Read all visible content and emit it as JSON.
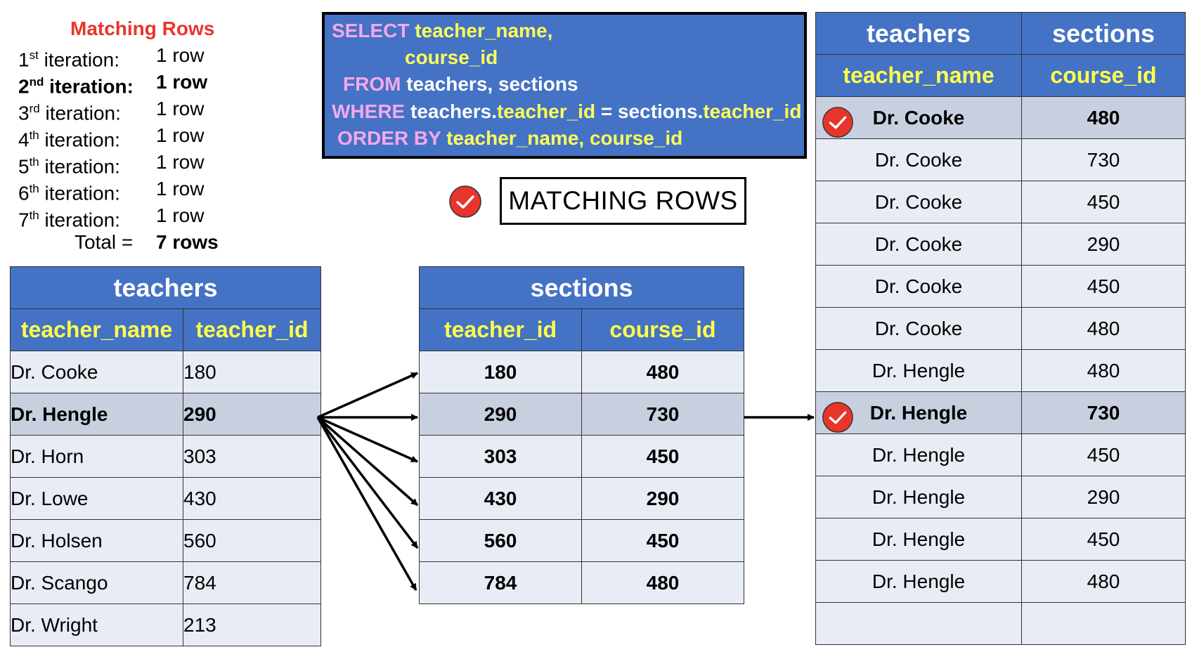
{
  "summary": {
    "title": "Matching Rows",
    "lines": [
      {
        "num": "1",
        "sup": "st",
        "word": " iteration:",
        "value": "1 row"
      },
      {
        "num": "2",
        "sup": "nd",
        "word": " iteration:",
        "value": "1 row"
      },
      {
        "num": "3",
        "sup": "rd",
        "word": " iteration:",
        "value": "1 row"
      },
      {
        "num": "4",
        "sup": "th",
        "word": " iteration:",
        "value": "1 row"
      },
      {
        "num": "5",
        "sup": "th",
        "word": " iteration:",
        "value": "1 row"
      },
      {
        "num": "6",
        "sup": "th",
        "word": " iteration:",
        "value": "1 row"
      },
      {
        "num": "7",
        "sup": "th",
        "word": " iteration:",
        "value": "1 row"
      }
    ],
    "total_label": "Total =",
    "total_value": "7 rows"
  },
  "sql": {
    "select_kw": "SELECT",
    "col1": "teacher_name,",
    "col2": "course_id",
    "from_kw": "FROM",
    "from_tables": "teachers, sections",
    "where_kw": "WHERE",
    "where_t1": "teachers.",
    "where_c1": "teacher_id",
    "where_eq": " = sections.",
    "where_c2": "teacher_id",
    "order_kw": "ORDER BY",
    "order_cols": "teacher_name, course_id"
  },
  "legend": {
    "label": "MATCHING ROWS",
    "icon": "check-circle-icon",
    "color": "#e8352b"
  },
  "colors": {
    "header": "#4472c4",
    "header_text_yellow": "#ffff4d",
    "row": "#e8ecf4",
    "row_highlight": "#c8d0e0"
  },
  "teachers_table": {
    "title": "teachers",
    "columns": [
      "teacher_name",
      "teacher_id"
    ],
    "rows": [
      [
        "Dr. Cooke",
        "180"
      ],
      [
        "Dr. Hengle",
        "290"
      ],
      [
        "Dr. Horn",
        "303"
      ],
      [
        "Dr. Lowe",
        "430"
      ],
      [
        "Dr. Holsen",
        "560"
      ],
      [
        "Dr. Scango",
        "784"
      ],
      [
        "Dr. Wright",
        "213"
      ]
    ]
  },
  "sections_table": {
    "title": "sections",
    "columns": [
      "teacher_id",
      "course_id"
    ],
    "rows": [
      [
        "180",
        "480"
      ],
      [
        "290",
        "730"
      ],
      [
        "303",
        "450"
      ],
      [
        "430",
        "290"
      ],
      [
        "560",
        "450"
      ],
      [
        "784",
        "480"
      ]
    ]
  },
  "result_table": {
    "titles": [
      "teachers",
      "sections"
    ],
    "columns": [
      "teacher_name",
      "course_id"
    ],
    "rows": [
      [
        "Dr. Cooke",
        "480"
      ],
      [
        "Dr. Cooke",
        "730"
      ],
      [
        "Dr. Cooke",
        "450"
      ],
      [
        "Dr. Cooke",
        "290"
      ],
      [
        "Dr. Cooke",
        "450"
      ],
      [
        "Dr. Cooke",
        "480"
      ],
      [
        "Dr. Hengle",
        "480"
      ],
      [
        "Dr. Hengle",
        "730"
      ],
      [
        "Dr. Hengle",
        "450"
      ],
      [
        "Dr. Hengle",
        "290"
      ],
      [
        "Dr. Hengle",
        "450"
      ],
      [
        "Dr. Hengle",
        "480"
      ],
      [
        "",
        ""
      ]
    ]
  }
}
